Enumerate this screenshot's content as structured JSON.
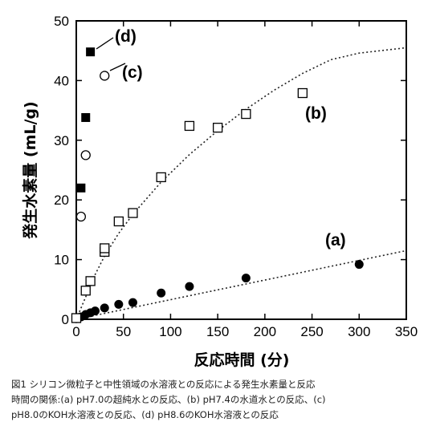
{
  "chart_data": {
    "type": "scatter",
    "xlabel": "反応時間 (分)",
    "ylabel": "発生水素量 (mL/g)",
    "xlim": [
      0,
      350
    ],
    "ylim": [
      0,
      50
    ],
    "xticks": [
      0,
      50,
      100,
      150,
      200,
      250,
      300,
      350
    ],
    "yticks": [
      0,
      10,
      20,
      30,
      40,
      50
    ],
    "grid": false,
    "series": [
      {
        "name": "(a)",
        "marker": "filled-circle",
        "points": [
          [
            0,
            0.1
          ],
          [
            5,
            0.4
          ],
          [
            10,
            0.8
          ],
          [
            15,
            1.1
          ],
          [
            20,
            1.4
          ],
          [
            30,
            1.9
          ],
          [
            45,
            2.5
          ],
          [
            60,
            2.8
          ],
          [
            90,
            4.4
          ],
          [
            120,
            5.5
          ],
          [
            180,
            6.9
          ],
          [
            300,
            9.2
          ]
        ],
        "fit": [
          [
            0,
            0
          ],
          [
            350,
            11.5
          ]
        ]
      },
      {
        "name": "(b)",
        "marker": "open-square",
        "points": [
          [
            0,
            0.2
          ],
          [
            10,
            4.8
          ],
          [
            15,
            6.4
          ],
          [
            30,
            11.3
          ],
          [
            30,
            11.9
          ],
          [
            45,
            16.4
          ],
          [
            60,
            17.8
          ],
          [
            90,
            23.8
          ],
          [
            120,
            32.4
          ],
          [
            150,
            32.1
          ],
          [
            180,
            34.4
          ],
          [
            240,
            37.9
          ]
        ],
        "fit": [
          [
            0,
            0
          ],
          [
            20,
            7.5
          ],
          [
            30,
            10.6
          ],
          [
            45,
            14.4
          ],
          [
            60,
            17.6
          ],
          [
            90,
            23
          ],
          [
            120,
            27.6
          ],
          [
            150,
            31.6
          ],
          [
            180,
            35.2
          ],
          [
            210,
            38.4
          ],
          [
            240,
            41.2
          ],
          [
            270,
            43.5
          ],
          [
            300,
            44.6
          ],
          [
            350,
            45.5
          ]
        ]
      },
      {
        "name": "(c)",
        "marker": "open-circle",
        "points": [
          [
            5,
            17.2
          ],
          [
            10,
            27.5
          ],
          [
            30,
            40.8
          ]
        ]
      },
      {
        "name": "(d)",
        "marker": "filled-square",
        "points": [
          [
            5,
            22
          ],
          [
            10,
            33.8
          ],
          [
            15,
            44.8
          ]
        ]
      }
    ]
  },
  "caption": {
    "line1": "図1 シリコン微粒子と中性領域の水溶液との反応による発生水素量と反応",
    "line2": "時間の関係:(a) pH7.0の超純水との反応、(b) pH7.4の水道水との反応、(c)",
    "line3": "pH8.0のKOH水溶液との反応、(d) pH8.6のKOH水溶液との反応"
  }
}
